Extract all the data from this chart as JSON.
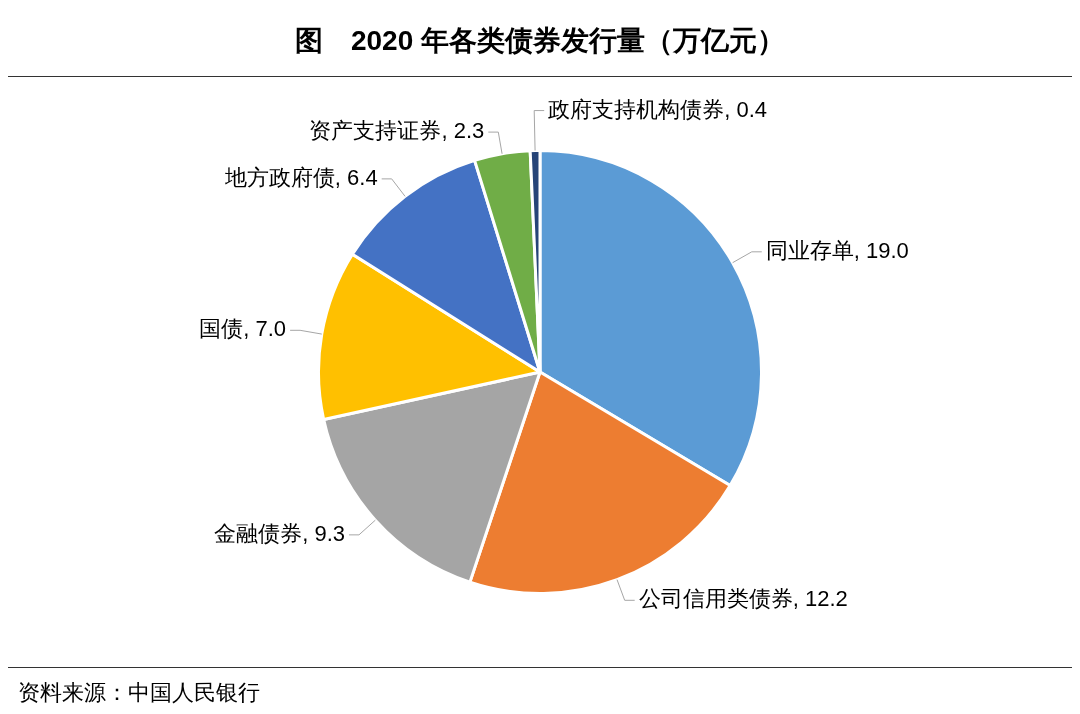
{
  "chart_data": {
    "type": "pie",
    "title": "图　2020 年各类债券发行量（万亿元）",
    "categories": [
      "同业存单",
      "公司信用类债券",
      "金融债券",
      "国债",
      "地方政府债",
      "资产支持证券",
      "政府支持机构债券"
    ],
    "values": [
      19.0,
      12.2,
      9.3,
      7.0,
      6.4,
      2.3,
      0.4
    ],
    "value_labels": [
      "19.0",
      "12.2",
      "9.3",
      "7.0",
      "6.4",
      "2.3",
      "0.4"
    ],
    "colors": [
      "#5b9bd5",
      "#ed7d31",
      "#a5a5a5",
      "#ffc000",
      "#4472c4",
      "#70ad47",
      "#264478"
    ],
    "legend": false,
    "annotations": [
      "资料来源：中国人民银行"
    ]
  }
}
